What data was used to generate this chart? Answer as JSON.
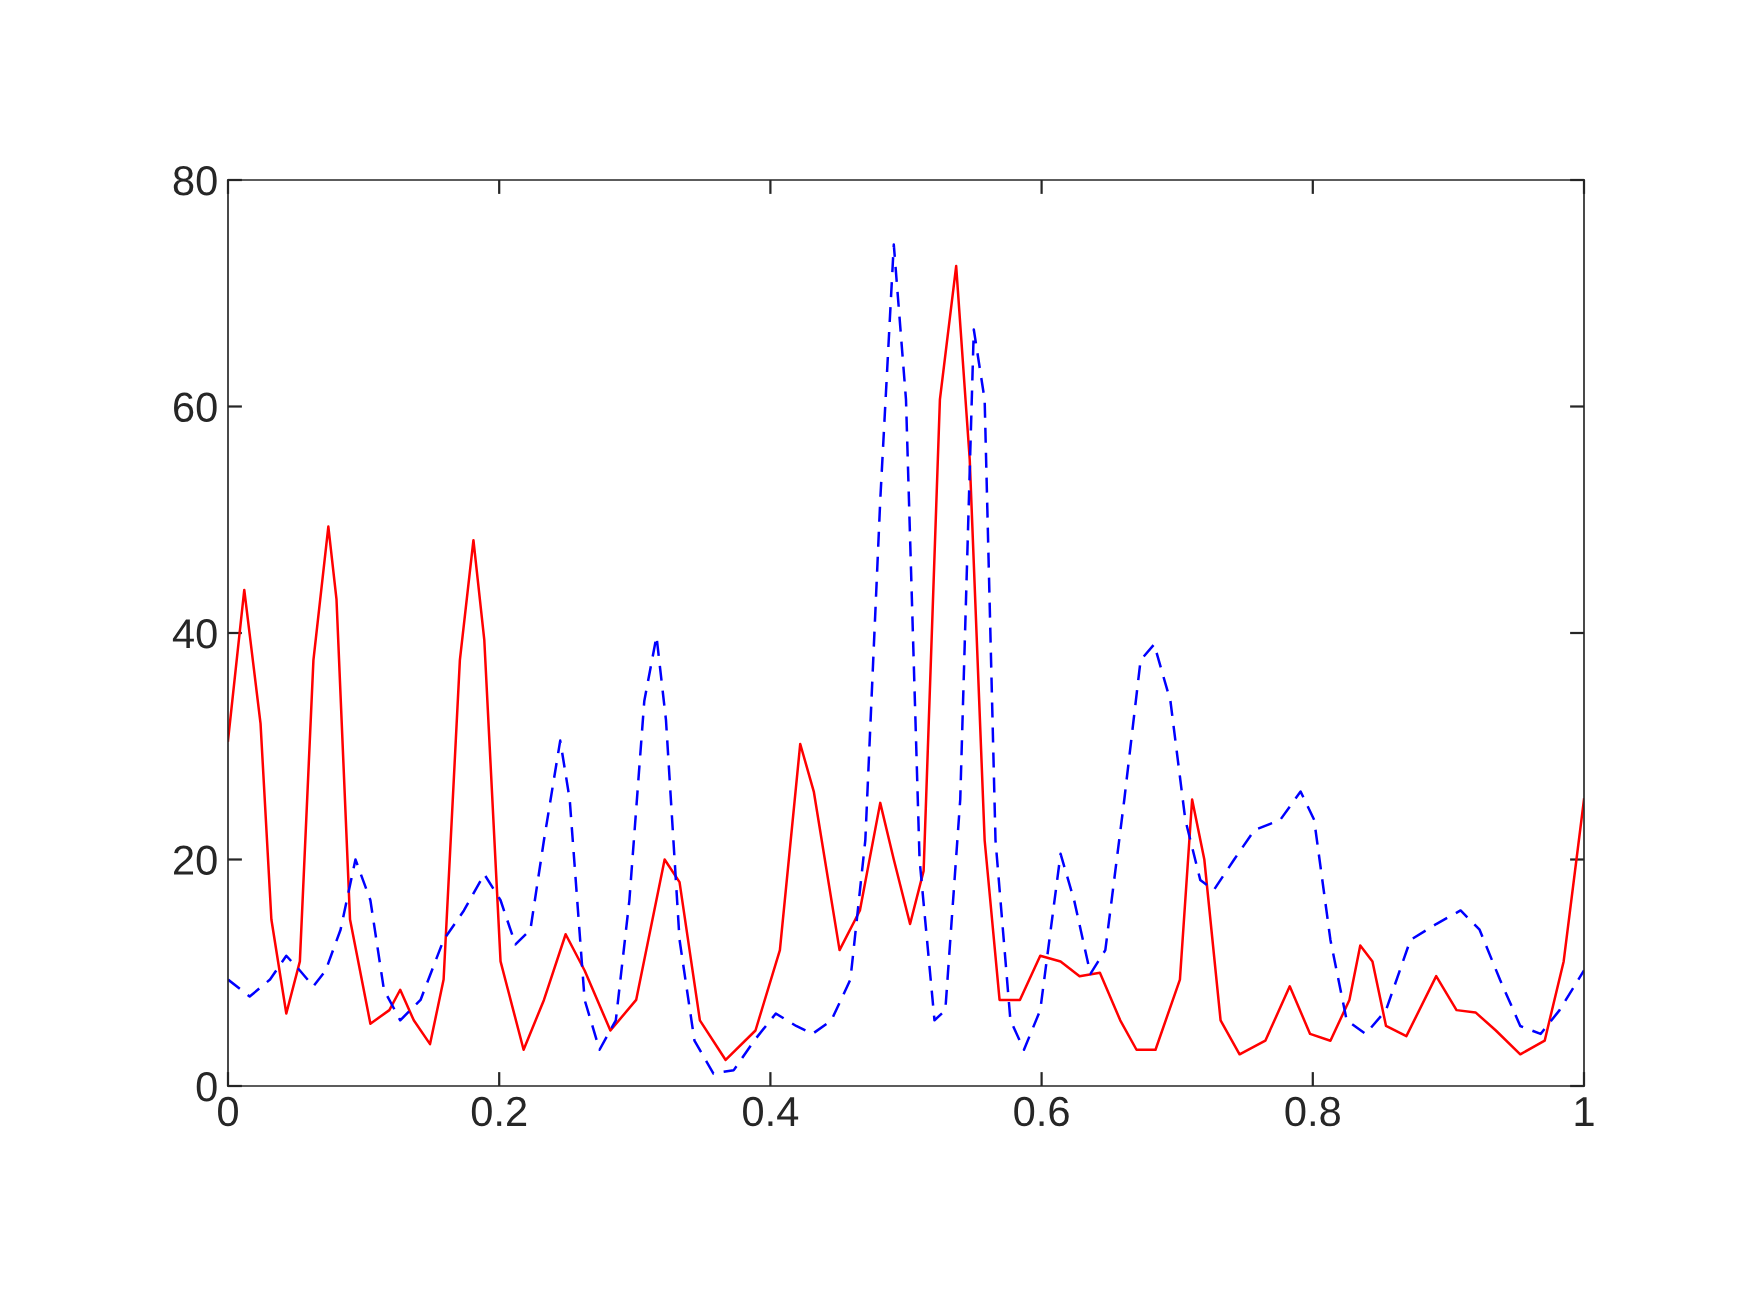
{
  "chart_data": {
    "type": "line",
    "xlim": [
      0,
      1
    ],
    "ylim": [
      0,
      80
    ],
    "xticks": [
      0,
      0.2,
      0.4,
      0.6,
      0.8,
      1
    ],
    "yticks": [
      0,
      20,
      40,
      60,
      80
    ],
    "series": [
      {
        "color": "#ff0000",
        "line_style": "solid",
        "x": [
          0,
          0.012,
          0.024,
          0.032,
          0.043,
          0.053,
          0.063,
          0.074,
          0.08,
          0.09,
          0.105,
          0.119,
          0.127,
          0.137,
          0.149,
          0.159,
          0.171,
          0.181,
          0.189,
          0.201,
          0.218,
          0.233,
          0.249,
          0.263,
          0.282,
          0.301,
          0.322,
          0.333,
          0.348,
          0.367,
          0.389,
          0.407,
          0.422,
          0.432,
          0.451,
          0.466,
          0.481,
          0.491,
          0.503,
          0.513,
          0.525,
          0.537,
          0.547,
          0.558,
          0.569,
          0.584,
          0.599,
          0.614,
          0.628,
          0.643,
          0.658,
          0.67,
          0.684,
          0.702,
          0.711,
          0.72,
          0.732,
          0.746,
          0.765,
          0.783,
          0.798,
          0.813,
          0.827,
          0.835,
          0.844,
          0.854,
          0.869,
          0.891,
          0.906,
          0.92,
          0.935,
          0.953,
          0.971,
          0.985,
          1.0
        ],
        "values": [
          30.5,
          43.8,
          32,
          14.7,
          6.4,
          11,
          37.6,
          49.4,
          43,
          14.7,
          5.5,
          6.7,
          8.5,
          5.8,
          3.7,
          9.4,
          37.6,
          48.2,
          39.4,
          11,
          3.2,
          7.6,
          13.4,
          10.2,
          4.9,
          7.6,
          20,
          18,
          5.8,
          2.3,
          4.9,
          12,
          30.2,
          26,
          12,
          15.5,
          25,
          20,
          14.3,
          19,
          60.6,
          72.4,
          55.3,
          21.7,
          7.6,
          7.6,
          11.5,
          11,
          9.7,
          10,
          5.8,
          3.2,
          3.2,
          9.4,
          25.3,
          20,
          5.8,
          2.8,
          4,
          8.8,
          4.6,
          4,
          7.6,
          12.4,
          11,
          5.3,
          4.4,
          9.7,
          6.7,
          6.5,
          4.9,
          2.8,
          4,
          11,
          25.3
        ]
      },
      {
        "color": "#0000ff",
        "line_style": "dashed",
        "x": [
          0,
          0.016,
          0.031,
          0.043,
          0.053,
          0.063,
          0.072,
          0.083,
          0.094,
          0.105,
          0.115,
          0.127,
          0.142,
          0.159,
          0.174,
          0.189,
          0.201,
          0.212,
          0.223,
          0.233,
          0.245,
          0.252,
          0.263,
          0.274,
          0.286,
          0.296,
          0.307,
          0.316,
          0.323,
          0.333,
          0.344,
          0.358,
          0.373,
          0.388,
          0.404,
          0.419,
          0.431,
          0.445,
          0.459,
          0.47,
          0.481,
          0.491,
          0.5,
          0.51,
          0.521,
          0.529,
          0.54,
          0.55,
          0.558,
          0.566,
          0.577,
          0.587,
          0.599,
          0.614,
          0.624,
          0.636,
          0.647,
          0.661,
          0.673,
          0.683,
          0.695,
          0.706,
          0.717,
          0.727,
          0.742,
          0.757,
          0.776,
          0.791,
          0.801,
          0.813,
          0.825,
          0.839,
          0.854,
          0.872,
          0.891,
          0.909,
          0.923,
          0.938,
          0.953,
          0.968,
          0.982,
          1.0
        ],
        "values": [
          9.4,
          7.9,
          9.4,
          11.5,
          10.2,
          8.8,
          10.2,
          13.8,
          20,
          16.4,
          8.5,
          5.8,
          7.6,
          12.9,
          15.5,
          18.7,
          16.4,
          12.5,
          13.8,
          21.7,
          30.5,
          25.3,
          7.6,
          3.2,
          5.8,
          16.4,
          34,
          39.7,
          32.3,
          12.9,
          4,
          1.1,
          1.4,
          4,
          6.4,
          5.3,
          4.6,
          5.8,
          9.4,
          21.7,
          51.7,
          74.3,
          60.6,
          20,
          5.8,
          6.7,
          25.3,
          66.8,
          60.6,
          21.7,
          5.8,
          3.2,
          6.7,
          20.5,
          16.4,
          9.9,
          12,
          25.3,
          37.6,
          39,
          34,
          23.5,
          18.2,
          17.3,
          20,
          22.6,
          23.5,
          26,
          23.5,
          12.9,
          5.8,
          4.6,
          6.7,
          12.9,
          14.3,
          15.5,
          13.8,
          9.4,
          5.3,
          4.6,
          6.7,
          10.2
        ]
      }
    ]
  }
}
